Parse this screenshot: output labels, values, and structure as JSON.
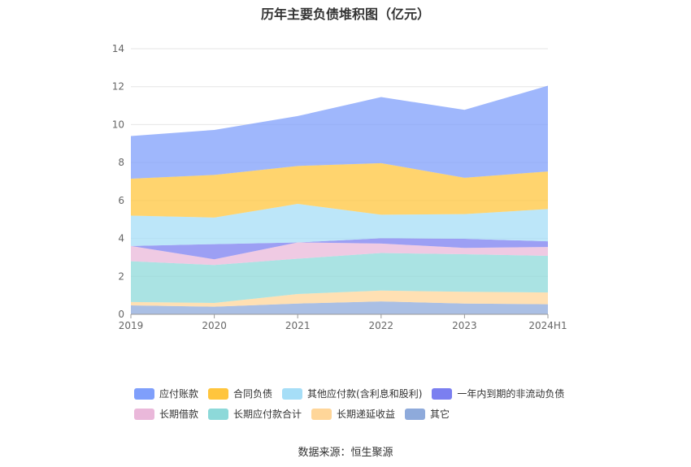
{
  "title": "历年主要负债堆积图（亿元）",
  "source": "数据来源：恒生聚源",
  "chart_data": {
    "type": "area",
    "stacked": true,
    "categories": [
      "2019",
      "2020",
      "2021",
      "2022",
      "2023",
      "2024H1"
    ],
    "ylim": [
      0,
      14
    ],
    "yticks": [
      0,
      2,
      4,
      6,
      8,
      10,
      12,
      14
    ],
    "grid": true,
    "legend_position": "bottom",
    "series": [
      {
        "name": "其它",
        "color": "#8eaadb",
        "values": [
          0.47,
          0.4,
          0.57,
          0.68,
          0.57,
          0.53
        ]
      },
      {
        "name": "长期递延收益",
        "color": "#ffd699",
        "values": [
          0.18,
          0.2,
          0.5,
          0.57,
          0.62,
          0.62
        ]
      },
      {
        "name": "长期应付款合计",
        "color": "#8dd9d9",
        "values": [
          2.15,
          2.0,
          1.86,
          1.98,
          1.98,
          1.93
        ]
      },
      {
        "name": "长期借款",
        "color": "#eab8da",
        "values": [
          0.8,
          0.3,
          0.86,
          0.5,
          0.33,
          0.47
        ]
      },
      {
        "name": "一年内到期的非流动负债",
        "color": "#7b7ff0",
        "values": [
          0.0,
          0.8,
          0.0,
          0.28,
          0.48,
          0.3
        ]
      },
      {
        "name": "其他应付款(含利息和股利)",
        "color": "#a6def7",
        "values": [
          1.6,
          1.4,
          2.03,
          1.24,
          1.3,
          1.7
        ]
      },
      {
        "name": "合同负债",
        "color": "#ffc53d",
        "values": [
          1.95,
          2.25,
          2.0,
          2.72,
          1.92,
          1.98
        ]
      },
      {
        "name": "应付账款",
        "color": "#7f9ffb",
        "values": [
          2.25,
          2.37,
          2.63,
          3.48,
          3.58,
          4.52
        ]
      }
    ],
    "legend_rows": [
      [
        "应付账款",
        "合同负债",
        "其他应付款(含利息和股利)",
        "一年内到期的非流动负债"
      ],
      [
        "长期借款",
        "长期应付款合计",
        "长期递延收益",
        "其它"
      ]
    ]
  }
}
